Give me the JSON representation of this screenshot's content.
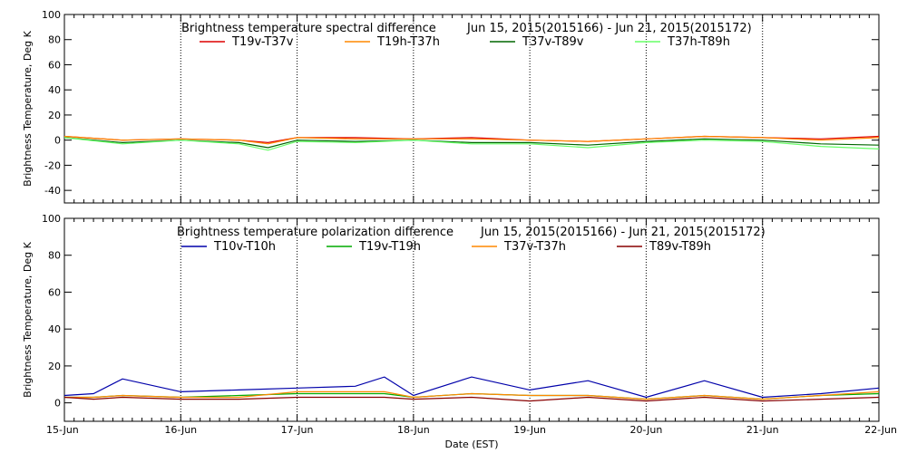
{
  "xlabel": "Date (EST)",
  "x_tick_labels": [
    "15-Jun",
    "16-Jun",
    "17-Jun",
    "18-Jun",
    "19-Jun",
    "20-Jun",
    "21-Jun",
    "22-Jun"
  ],
  "chart_data": [
    {
      "type": "line",
      "title": "Brightness temperature spectral difference",
      "date_range": "Jun 15, 2015(2015166) - Jun 21, 2015(2015172)",
      "ylabel": "Brightness Temperature, Deg K",
      "xlim": [
        "2015-06-15",
        "2015-06-22"
      ],
      "ylim": [
        -50,
        100
      ],
      "yticks": [
        -40,
        -20,
        0,
        20,
        40,
        60,
        80,
        100
      ],
      "x": [
        "2015-06-15",
        "2015-06-15T12:00",
        "2015-06-16",
        "2015-06-16T12:00",
        "2015-06-16T18:00",
        "2015-06-17",
        "2015-06-17T12:00",
        "2015-06-18",
        "2015-06-18T12:00",
        "2015-06-19",
        "2015-06-19T12:00",
        "2015-06-20",
        "2015-06-20T12:00",
        "2015-06-21",
        "2015-06-21T12:00",
        "2015-06-22"
      ],
      "series": [
        {
          "name": "T19v-T37v",
          "color": "#dd0000",
          "values": [
            3,
            0,
            1,
            0,
            -2,
            2,
            2,
            1,
            2,
            0,
            -1,
            1,
            3,
            2,
            1,
            3
          ]
        },
        {
          "name": "T19h-T37h",
          "color": "#ff8800",
          "values": [
            3,
            0,
            1,
            0,
            -3,
            2,
            1,
            1,
            1,
            0,
            -1,
            1,
            3,
            2,
            0,
            2
          ]
        },
        {
          "name": "T37v-T89v",
          "color": "#006600",
          "values": [
            2,
            -2,
            0,
            -2,
            -6,
            0,
            -1,
            0,
            -2,
            -2,
            -4,
            -1,
            1,
            0,
            -3,
            -4
          ]
        },
        {
          "name": "T37h-T89h",
          "color": "#66ff66",
          "values": [
            2,
            -3,
            0,
            -3,
            -8,
            -1,
            -2,
            0,
            -3,
            -3,
            -6,
            -2,
            0,
            -1,
            -5,
            -7
          ]
        }
      ]
    },
    {
      "type": "line",
      "title": "Brightness temperature polarization difference",
      "date_range": "Jun 15, 2015(2015166) - Jun 21, 2015(2015172)",
      "ylabel": "Brightness Temperature, Deg K",
      "xlim": [
        "2015-06-15",
        "2015-06-22"
      ],
      "ylim": [
        -10,
        100
      ],
      "yticks": [
        0,
        20,
        40,
        60,
        80,
        100
      ],
      "x": [
        "2015-06-15",
        "2015-06-15T06:00",
        "2015-06-15T12:00",
        "2015-06-16",
        "2015-06-16T12:00",
        "2015-06-17",
        "2015-06-17T12:00",
        "2015-06-17T18:00",
        "2015-06-18",
        "2015-06-18T12:00",
        "2015-06-19",
        "2015-06-19T12:00",
        "2015-06-20",
        "2015-06-20T12:00",
        "2015-06-21",
        "2015-06-21T12:00",
        "2015-06-22"
      ],
      "series": [
        {
          "name": "T10v-T10h",
          "color": "#0000aa",
          "values": [
            4,
            5,
            13,
            6,
            7,
            8,
            9,
            14,
            4,
            14,
            7,
            12,
            3,
            12,
            3,
            5,
            8
          ]
        },
        {
          "name": "T19v-T19h",
          "color": "#00aa00",
          "values": [
            3,
            3,
            4,
            3,
            4,
            5,
            5,
            5,
            3,
            5,
            4,
            4,
            2,
            4,
            2,
            4,
            5
          ]
        },
        {
          "name": "T37v-T37h",
          "color": "#ff8800",
          "values": [
            3,
            3,
            4,
            3,
            3,
            6,
            6,
            6,
            3,
            5,
            4,
            4,
            2,
            4,
            2,
            4,
            6
          ]
        },
        {
          "name": "T89v-T89h",
          "color": "#880000",
          "values": [
            3,
            2,
            3,
            2,
            2,
            3,
            3,
            3,
            2,
            3,
            1,
            3,
            1,
            3,
            1,
            2,
            3
          ]
        }
      ]
    }
  ]
}
